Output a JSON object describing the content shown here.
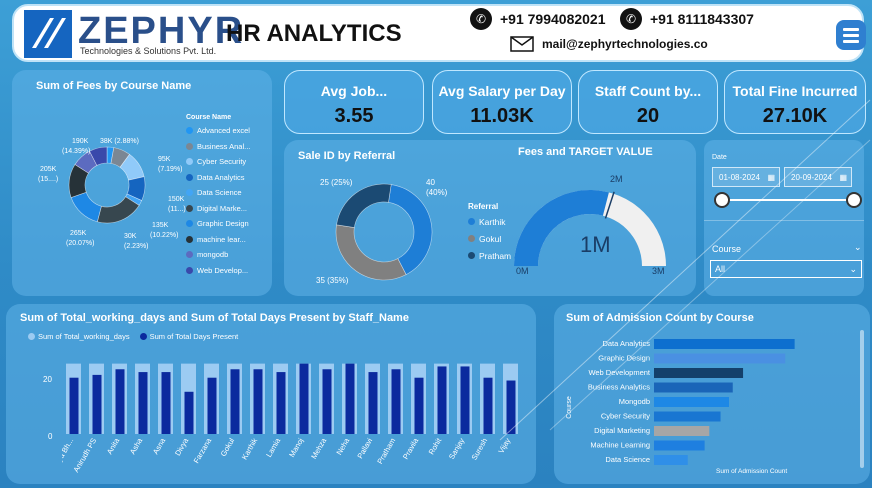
{
  "header": {
    "brand": "ZEPHYR",
    "brand_sub": "Technologies & Solutions Pvt. Ltd.",
    "title": "HR ANALYTICS",
    "phone1": "+91 7994082021",
    "phone2": "+91 8111843307",
    "email": "mail@zephyrtechnologies.co"
  },
  "fees_chart": {
    "title": "Sum of Fees by Course Name",
    "legend_title": "Course Name",
    "legend": [
      "Advanced excel",
      "Business Anal...",
      "Cyber Security",
      "Data Analytics",
      "Data Science",
      "Digital Marke...",
      "Graphic Design",
      "machine lear...",
      "mongodb",
      "Web Develop..."
    ],
    "labels": {
      "a": "38K (2.88%)",
      "b": "95K",
      "b2": "(7.19%)",
      "c": "150K",
      "c2": "(11...)",
      "d": "135K",
      "d2": "(10.22%)",
      "e": "30K",
      "e2": "(2.23%)",
      "f": "265K",
      "f2": "(20.07%)",
      "g": "205K",
      "g2": "(15....)",
      "h": "190K",
      "h2": "(14.39%)"
    }
  },
  "kpis": [
    {
      "label": "Avg Job...",
      "value": "3.55"
    },
    {
      "label": "Avg Salary per Day",
      "value": "11.03K"
    },
    {
      "label": "Staff Count by...",
      "value": "20"
    },
    {
      "label": "Total Fine Incurred",
      "value": "27.10K"
    }
  ],
  "referral": {
    "title": "Sale ID by Referral",
    "legend_title": "Referral",
    "legend": [
      "Karthik",
      "Gokul",
      "Pratham"
    ],
    "lbl_40": "40",
    "lbl_40p": "(40%)",
    "lbl_25": "25 (25%)",
    "lbl_35": "35 (35%)"
  },
  "gauge": {
    "title": "Fees and TARGET VALUE",
    "value": "1M",
    "min": "0M",
    "max": "3M",
    "target": "2M"
  },
  "filters": {
    "date_label": "Date",
    "date_from": "01-08-2024",
    "date_to": "20-09-2024",
    "course_label": "Course",
    "course_value": "All"
  },
  "days_chart": {
    "title": "Sum of Total_working_days and Sum of Total Days Present by Staff_Name",
    "legend1": "Sum of Total_working_days",
    "legend2": "Sum of Total Days Present",
    "y_ticks": [
      "20",
      "0"
    ]
  },
  "admission_chart": {
    "title": "Sum of Admission Count by Course",
    "y_axis": "Course",
    "x_axis": "Sum of Admission Count"
  },
  "chart_data": [
    {
      "type": "pie",
      "title": "Sum of Fees by Course Name",
      "categories": [
        "Advanced excel",
        "Business Anal...",
        "Cyber Security",
        "Data Analytics",
        "Data Science",
        "Digital Marke...",
        "Graphic Design",
        "machine lear...",
        "mongodb",
        "Web Develop..."
      ],
      "values": [
        38000,
        95000,
        150000,
        135000,
        30000,
        265000,
        205000,
        190000,
        110000,
        100000
      ],
      "colors": [
        "#2196f3",
        "#7b8794",
        "#90caf9",
        "#1565c0",
        "#42a5f5",
        "#37474f",
        "#1e88e5",
        "#263238",
        "#5c6bc0",
        "#3949ab"
      ]
    },
    {
      "type": "pie",
      "title": "Sale ID by Referral",
      "categories": [
        "Karthik",
        "Gokul",
        "Pratham"
      ],
      "values": [
        40,
        35,
        25
      ],
      "colors": [
        "#1e7ed6",
        "#808080",
        "#1b4a73"
      ]
    },
    {
      "type": "bar",
      "title": "Sum of Total_working_days and Sum of Total Days Present by Staff_Name",
      "categories": [
        "Aathmiya Bh...",
        "Anirudh PS",
        "Anita",
        "Asha",
        "Asna",
        "Divya",
        "Farzana",
        "Gokul",
        "Karthik",
        "Lamia",
        "Manoj",
        "Mehza",
        "Neha",
        "Pallavi",
        "Pratham",
        "Pravila",
        "Rohit",
        "Sanjay",
        "Suresh",
        "Vijay"
      ],
      "series": [
        {
          "name": "Sum of Total_working_days",
          "values": [
            25,
            25,
            25,
            25,
            25,
            25,
            25,
            25,
            25,
            25,
            25,
            25,
            25,
            25,
            25,
            25,
            25,
            25,
            25,
            25
          ]
        },
        {
          "name": "Sum of Total Days Present",
          "values": [
            20,
            21,
            23,
            22,
            22,
            15,
            20,
            23,
            23,
            22,
            25,
            23,
            25,
            22,
            23,
            20,
            24,
            24,
            20,
            19
          ]
        }
      ],
      "ylim": [
        0,
        27
      ]
    },
    {
      "type": "bar",
      "title": "Sum of Admission Count by Course",
      "categories": [
        "Data Analytics",
        "Graphic Design",
        "Web Development",
        "Business Analytics",
        "Mongodb",
        "Cyber Security",
        "Digital Marketing",
        "Machine Learning",
        "Data Science"
      ],
      "values": [
        15,
        14,
        9.5,
        8.4,
        8,
        7.1,
        5.9,
        5.4,
        3.6
      ],
      "xlabel": "Sum of Admission Count",
      "ylabel": "Course",
      "colors": [
        "#0d6fcf",
        "#4a90e2",
        "#14406b",
        "#1a65b8",
        "#1e88e5",
        "#1976d2",
        "#a6a6a6",
        "#1e7fe0",
        "#2f8fe8"
      ]
    }
  ]
}
